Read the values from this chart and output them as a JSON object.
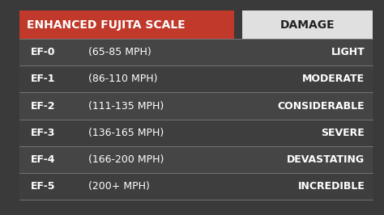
{
  "title": "ENHANCED FUJITA SCALE",
  "col2_header": "DAMAGE",
  "rows": [
    {
      "ef": "EF-0",
      "mph": "(65-85 MPH)",
      "damage": "LIGHT"
    },
    {
      "ef": "EF-1",
      "mph": "(86-110 MPH)",
      "damage": "MODERATE"
    },
    {
      "ef": "EF-2",
      "mph": "(111-135 MPH)",
      "damage": "CONSIDERABLE"
    },
    {
      "ef": "EF-3",
      "mph": "(136-165 MPH)",
      "damage": "SEVERE"
    },
    {
      "ef": "EF-4",
      "mph": "(166-200 MPH)",
      "damage": "DEVASTATING"
    },
    {
      "ef": "EF-5",
      "mph": "(200+ MPH)",
      "damage": "INCREDIBLE"
    }
  ],
  "header_bg": "#c0392b",
  "header_text_color": "#ffffff",
  "damage_header_bg": "#e0e0e0",
  "damage_header_text_color": "#222222",
  "row_text_color": "#ffffff",
  "row_damage_color": "#ffffff",
  "figsize": [
    4.74,
    2.66
  ],
  "dpi": 100,
  "bg_color": "#3a3a3a"
}
